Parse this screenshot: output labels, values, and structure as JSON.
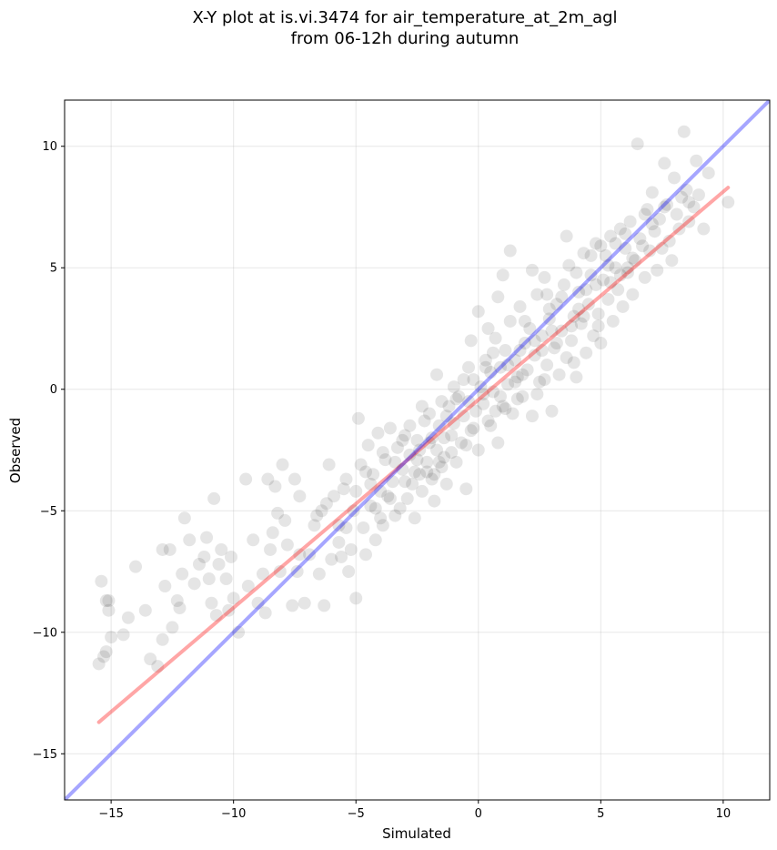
{
  "chart_data": {
    "type": "scatter",
    "title_lines": [
      "X-Y plot at is.vi.3474 for air_temperature_at_2m_agl",
      "from 06-12h during autumn"
    ],
    "xlabel": "Simulated",
    "ylabel": "Observed",
    "xlim": [
      -16.9,
      11.9
    ],
    "ylim": [
      -16.9,
      11.9
    ],
    "xticks": [
      -15,
      -10,
      -5,
      0,
      5,
      10
    ],
    "yticks": [
      -15,
      -10,
      -5,
      0,
      5,
      10
    ],
    "tick_labels": [
      "−15",
      "−10",
      "−5",
      "0",
      "5",
      "10"
    ],
    "grid": true,
    "point_color": "#000000",
    "point_alpha": 0.1,
    "one_to_one_line": {
      "color": "#0000ff",
      "x": [
        -16.9,
        11.9
      ],
      "y": [
        -16.9,
        11.9
      ]
    },
    "fit_line": {
      "color": "#ff0000",
      "x": [
        -15.5,
        10.2
      ],
      "y": [
        -13.7,
        8.3
      ]
    },
    "points": [
      [
        -15.5,
        -11.3
      ],
      [
        -15.3,
        -11.0
      ],
      [
        -15.2,
        -10.8
      ],
      [
        -15.0,
        -10.2
      ],
      [
        -15.1,
        -9.1
      ],
      [
        -15.2,
        -8.7
      ],
      [
        -15.1,
        -8.7
      ],
      [
        -15.4,
        -7.9
      ],
      [
        -14.5,
        -10.1
      ],
      [
        -14.3,
        -9.4
      ],
      [
        -14.0,
        -7.3
      ],
      [
        -13.6,
        -9.1
      ],
      [
        -13.4,
        -11.1
      ],
      [
        -13.1,
        -11.4
      ],
      [
        -12.9,
        -10.3
      ],
      [
        -12.8,
        -8.1
      ],
      [
        -12.9,
        -6.6
      ],
      [
        -12.6,
        -6.6
      ],
      [
        -12.5,
        -9.8
      ],
      [
        -12.3,
        -8.7
      ],
      [
        -12.2,
        -9.0
      ],
      [
        -12.1,
        -7.6
      ],
      [
        -12.0,
        -5.3
      ],
      [
        -11.8,
        -6.2
      ],
      [
        -11.6,
        -8.0
      ],
      [
        -11.4,
        -7.2
      ],
      [
        -11.2,
        -6.9
      ],
      [
        -11.1,
        -6.1
      ],
      [
        -11.0,
        -7.8
      ],
      [
        -10.9,
        -8.8
      ],
      [
        -10.8,
        -4.5
      ],
      [
        -10.7,
        -9.3
      ],
      [
        -10.6,
        -7.2
      ],
      [
        -10.5,
        -6.6
      ],
      [
        -10.3,
        -7.8
      ],
      [
        -10.2,
        -9.1
      ],
      [
        -10.1,
        -6.9
      ],
      [
        -10.0,
        -8.6
      ],
      [
        -9.8,
        -10.0
      ],
      [
        -9.5,
        -3.7
      ],
      [
        -9.4,
        -8.1
      ],
      [
        -9.2,
        -6.2
      ],
      [
        -9.0,
        -8.8
      ],
      [
        -8.8,
        -7.6
      ],
      [
        -8.7,
        -9.2
      ],
      [
        -8.6,
        -3.7
      ],
      [
        -8.5,
        -6.6
      ],
      [
        -8.4,
        -5.9
      ],
      [
        -8.3,
        -4.0
      ],
      [
        -8.2,
        -5.1
      ],
      [
        -8.1,
        -7.5
      ],
      [
        -8.0,
        -3.1
      ],
      [
        -7.9,
        -5.4
      ],
      [
        -7.8,
        -6.4
      ],
      [
        -7.6,
        -8.9
      ],
      [
        -7.5,
        -3.7
      ],
      [
        -7.4,
        -7.5
      ],
      [
        -7.3,
        -4.4
      ],
      [
        -7.1,
        -8.8
      ],
      [
        -6.9,
        -6.8
      ],
      [
        -6.7,
        -5.6
      ],
      [
        -6.5,
        -7.6
      ],
      [
        -6.4,
        -5.0
      ],
      [
        -6.3,
        -8.9
      ],
      [
        -6.2,
        -4.7
      ],
      [
        -6.1,
        -3.1
      ],
      [
        -6.0,
        -7.0
      ],
      [
        -5.9,
        -4.4
      ],
      [
        -5.7,
        -5.6
      ],
      [
        -5.6,
        -6.9
      ],
      [
        -5.5,
        -4.1
      ],
      [
        -5.4,
        -3.7
      ],
      [
        -5.3,
        -7.5
      ],
      [
        -5.2,
        -6.6
      ],
      [
        -5.1,
        -5.0
      ],
      [
        -5.0,
        -8.6
      ],
      [
        -4.9,
        -1.2
      ],
      [
        -4.8,
        -3.1
      ],
      [
        -4.7,
        -5.7
      ],
      [
        -4.6,
        -6.8
      ],
      [
        -4.5,
        -2.3
      ],
      [
        -4.4,
        -4.8
      ],
      [
        -4.3,
        -3.5
      ],
      [
        -4.2,
        -6.2
      ],
      [
        -4.1,
        -1.8
      ],
      [
        -4.0,
        -4.2
      ],
      [
        -3.9,
        -5.6
      ],
      [
        -3.8,
        -2.9
      ],
      [
        -3.7,
        -4.4
      ],
      [
        -3.6,
        -1.6
      ],
      [
        -3.5,
        -3.8
      ],
      [
        -3.4,
        -5.2
      ],
      [
        -3.3,
        -2.4
      ],
      [
        -3.2,
        -4.9
      ],
      [
        -3.1,
        -3.3
      ],
      [
        -3.0,
        -1.9
      ],
      [
        -2.9,
        -4.5
      ],
      [
        -2.8,
        -2.7
      ],
      [
        -2.7,
        -3.9
      ],
      [
        -2.6,
        -5.3
      ],
      [
        -2.5,
        -2.1
      ],
      [
        -2.4,
        -3.5
      ],
      [
        -2.3,
        -4.2
      ],
      [
        -2.2,
        -1.3
      ],
      [
        -2.1,
        -3.0
      ],
      [
        -2.0,
        -2.2
      ],
      [
        -1.9,
        -3.7
      ],
      [
        -1.8,
        -4.6
      ],
      [
        -1.7,
        -2.5
      ],
      [
        -1.6,
        -1.5
      ],
      [
        -1.5,
        -3.2
      ],
      [
        -1.4,
        -2.0
      ],
      [
        -1.3,
        -3.9
      ],
      [
        -1.2,
        -0.7
      ],
      [
        -1.1,
        -2.6
      ],
      [
        -1.0,
        -1.4
      ],
      [
        -0.9,
        -3.0
      ],
      [
        -0.8,
        -0.3
      ],
      [
        -0.7,
        -2.2
      ],
      [
        -0.6,
        -1.1
      ],
      [
        -0.5,
        -4.1
      ],
      [
        -0.4,
        -0.5
      ],
      [
        -0.3,
        -1.7
      ],
      [
        -0.2,
        0.4
      ],
      [
        -0.1,
        -0.9
      ],
      [
        0.0,
        -2.5
      ],
      [
        0.1,
        0.1
      ],
      [
        0.2,
        -0.6
      ],
      [
        0.3,
        1.2
      ],
      [
        0.4,
        -1.3
      ],
      [
        0.5,
        0.7
      ],
      [
        0.6,
        -0.1
      ],
      [
        0.7,
        2.1
      ],
      [
        0.8,
        -2.2
      ],
      [
        0.9,
        0.9
      ],
      [
        1.0,
        -0.7
      ],
      [
        1.1,
        1.6
      ],
      [
        1.2,
        0.2
      ],
      [
        1.3,
        2.8
      ],
      [
        1.4,
        -1.0
      ],
      [
        1.5,
        1.2
      ],
      [
        1.6,
        0.5
      ],
      [
        1.7,
        3.4
      ],
      [
        1.8,
        -0.3
      ],
      [
        1.9,
        1.9
      ],
      [
        2.0,
        0.8
      ],
      [
        2.1,
        2.5
      ],
      [
        2.2,
        -1.1
      ],
      [
        2.3,
        1.4
      ],
      [
        2.4,
        3.9
      ],
      [
        2.5,
        0.3
      ],
      [
        2.6,
        2.2
      ],
      [
        2.7,
        4.6
      ],
      [
        2.8,
        1.0
      ],
      [
        2.9,
        2.9
      ],
      [
        3.0,
        -0.9
      ],
      [
        3.1,
        1.7
      ],
      [
        3.2,
        3.5
      ],
      [
        3.3,
        0.6
      ],
      [
        3.4,
        2.4
      ],
      [
        3.5,
        4.3
      ],
      [
        3.6,
        1.3
      ],
      [
        3.7,
        5.1
      ],
      [
        3.8,
        2.0
      ],
      [
        3.9,
        3.0
      ],
      [
        4.0,
        0.5
      ],
      [
        4.1,
        4.0
      ],
      [
        4.2,
        2.7
      ],
      [
        4.3,
        5.6
      ],
      [
        4.4,
        1.5
      ],
      [
        4.5,
        3.5
      ],
      [
        4.6,
        4.7
      ],
      [
        4.7,
        2.2
      ],
      [
        4.8,
        6.0
      ],
      [
        4.9,
        3.1
      ],
      [
        5.0,
        1.9
      ],
      [
        5.1,
        4.5
      ],
      [
        5.2,
        5.5
      ],
      [
        5.3,
        3.7
      ],
      [
        5.4,
        6.3
      ],
      [
        5.5,
        2.8
      ],
      [
        5.6,
        5.0
      ],
      [
        5.7,
        4.1
      ],
      [
        5.8,
        6.6
      ],
      [
        5.9,
        3.4
      ],
      [
        6.0,
        5.8
      ],
      [
        6.1,
        4.8
      ],
      [
        6.2,
        6.9
      ],
      [
        6.3,
        3.9
      ],
      [
        6.4,
        5.3
      ],
      [
        6.5,
        10.1
      ],
      [
        6.6,
        6.2
      ],
      [
        6.8,
        4.6
      ],
      [
        6.9,
        7.4
      ],
      [
        7.0,
        5.7
      ],
      [
        7.1,
        8.1
      ],
      [
        7.2,
        6.5
      ],
      [
        7.3,
        4.9
      ],
      [
        7.4,
        7.0
      ],
      [
        7.5,
        5.8
      ],
      [
        7.6,
        9.3
      ],
      [
        7.7,
        7.6
      ],
      [
        7.8,
        6.1
      ],
      [
        7.9,
        5.3
      ],
      [
        8.0,
        8.7
      ],
      [
        8.1,
        7.2
      ],
      [
        8.2,
        6.6
      ],
      [
        8.3,
        7.9
      ],
      [
        8.4,
        10.6
      ],
      [
        8.5,
        8.2
      ],
      [
        8.6,
        6.9
      ],
      [
        8.8,
        7.5
      ],
      [
        8.9,
        9.4
      ],
      [
        9.0,
        8.0
      ],
      [
        9.2,
        6.6
      ],
      [
        9.4,
        8.9
      ],
      [
        10.2,
        7.7
      ],
      [
        0.0,
        3.2
      ],
      [
        -0.3,
        2.0
      ],
      [
        0.8,
        3.8
      ],
      [
        1.3,
        5.7
      ],
      [
        1.0,
        4.7
      ],
      [
        2.2,
        4.9
      ],
      [
        3.6,
        6.3
      ],
      [
        -1.7,
        0.6
      ],
      [
        -2.3,
        -0.7
      ],
      [
        -1.0,
        0.1
      ],
      [
        0.5,
        -1.5
      ],
      [
        -0.6,
        0.4
      ],
      [
        1.6,
        -0.4
      ],
      [
        2.7,
        0.4
      ],
      [
        3.2,
        1.9
      ],
      [
        4.3,
        3.0
      ],
      [
        4.8,
        4.3
      ],
      [
        5.4,
        4.4
      ],
      [
        6.1,
        5.0
      ],
      [
        6.7,
        5.9
      ],
      [
        7.1,
        6.8
      ],
      [
        5.8,
        4.7
      ],
      [
        4.9,
        2.6
      ],
      [
        3.9,
        1.1
      ],
      [
        2.4,
        -0.2
      ],
      [
        1.1,
        -0.8
      ],
      [
        -0.2,
        -1.6
      ],
      [
        -1.4,
        -2.8
      ],
      [
        -2.6,
        -3.4
      ],
      [
        -3.6,
        -4.5
      ],
      [
        -3.1,
        -2.1
      ],
      [
        -2.0,
        -1.0
      ],
      [
        -0.9,
        -0.4
      ],
      [
        0.3,
        0.9
      ],
      [
        1.7,
        1.6
      ],
      [
        2.9,
        3.3
      ],
      [
        4.0,
        4.8
      ],
      [
        5.0,
        5.9
      ],
      [
        6.0,
        6.4
      ],
      [
        -4.6,
        -3.4
      ],
      [
        -3.9,
        -2.6
      ],
      [
        -2.8,
        -1.5
      ],
      [
        -1.9,
        -2.0
      ],
      [
        -1.1,
        -1.9
      ],
      [
        0.2,
        -0.2
      ],
      [
        1.2,
        1.0
      ],
      [
        2.3,
        2.0
      ],
      [
        3.4,
        3.8
      ],
      [
        4.4,
        4.1
      ],
      [
        5.3,
        5.1
      ],
      [
        6.3,
        5.4
      ],
      [
        3.8,
        2.6
      ],
      [
        2.6,
        1.6
      ],
      [
        1.5,
        0.3
      ],
      [
        0.6,
        1.5
      ],
      [
        -0.4,
        0.9
      ],
      [
        -1.5,
        -0.5
      ],
      [
        -2.5,
        -2.9
      ],
      [
        -3.4,
        -3.0
      ],
      [
        -4.2,
        -4.9
      ],
      [
        -5.0,
        -4.2
      ],
      [
        -5.7,
        -6.3
      ],
      [
        -6.6,
        -5.2
      ],
      [
        -7.3,
        -6.8
      ],
      [
        -5.4,
        -5.7
      ],
      [
        -4.4,
        -3.9
      ],
      [
        -2.1,
        -3.4
      ],
      [
        -1.6,
        -3.0
      ],
      [
        0.9,
        -0.3
      ],
      [
        1.9,
        2.8
      ],
      [
        2.8,
        3.9
      ],
      [
        4.6,
        5.5
      ],
      [
        5.6,
        6.0
      ],
      [
        6.8,
        7.2
      ],
      [
        7.6,
        7.5
      ],
      [
        8.6,
        7.7
      ],
      [
        4.1,
        3.3
      ],
      [
        3.0,
        2.4
      ],
      [
        1.8,
        0.6
      ],
      [
        0.7,
        -0.9
      ],
      [
        -0.5,
        -2.3
      ],
      [
        -1.8,
        -3.5
      ],
      [
        -3.0,
        -3.8
      ],
      [
        -4.0,
        -5.3
      ],
      [
        -2.4,
        -2.5
      ],
      [
        -1.3,
        -1.1
      ],
      [
        0.4,
        2.5
      ]
    ]
  }
}
